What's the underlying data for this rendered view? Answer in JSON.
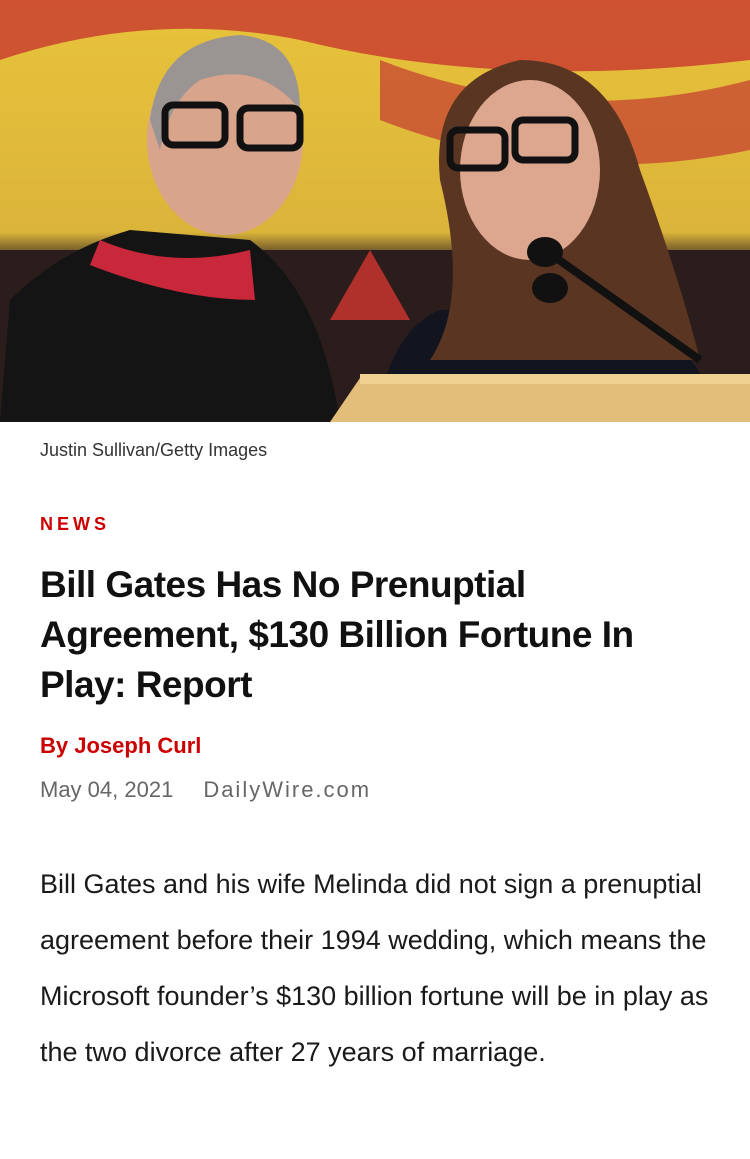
{
  "article": {
    "photo_credit": "Justin Sullivan/Getty Images",
    "section": "NEWS",
    "headline": "Bill Gates Has No Prenuptial Agreement, $130 Billion Fortune In Play: Report",
    "byline": "By Joseph Curl",
    "date": "May 04, 2021",
    "source": "DailyWire.com",
    "body": "Bill Gates and his wife Melinda did not sign a prenuptial agreement before their 1994 wedding, which means the Microsoft founder’s $130 billion fortune will be in play as the two divorce after 27 years of marriage."
  },
  "colors": {
    "accent": "#cc0000",
    "meta": "#666666"
  }
}
